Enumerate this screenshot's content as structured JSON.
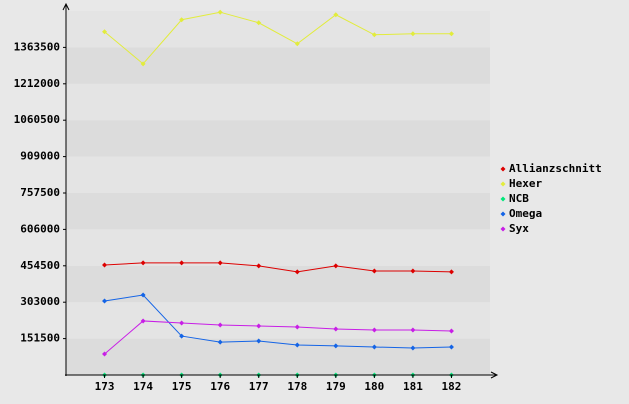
{
  "chart_data": {
    "type": "line",
    "categories": [
      "173",
      "174",
      "175",
      "176",
      "177",
      "178",
      "179",
      "180",
      "181",
      "182"
    ],
    "series": [
      {
        "name": "Allianzschnitt",
        "color": "#dd0000",
        "values": [
          458000,
          466500,
          466500,
          466500,
          454000,
          429000,
          454000,
          433000,
          433000,
          429000
        ]
      },
      {
        "name": "Hexer",
        "color": "#e2ec3c",
        "values": [
          1428700,
          1295000,
          1478600,
          1510000,
          1466000,
          1378600,
          1499400,
          1416100,
          1420300,
          1420300
        ]
      },
      {
        "name": "NCB",
        "color": "#00e87a",
        "values": [
          0,
          0,
          0,
          0,
          0,
          0,
          0,
          0,
          0,
          0
        ]
      },
      {
        "name": "Omega",
        "color": "#1464e6",
        "values": [
          308000,
          333000,
          162000,
          137000,
          141500,
          125000,
          121000,
          116500,
          112500,
          116500
        ]
      },
      {
        "name": "Syx",
        "color": "#c81ee6",
        "values": [
          87500,
          225000,
          216500,
          208000,
          204000,
          200000,
          191500,
          187500,
          187500,
          183000
        ]
      }
    ],
    "ylim": [
      0,
      1515000
    ],
    "yticks": [
      151500,
      303000,
      454500,
      606000,
      757500,
      909000,
      1060500,
      1212000,
      1363500
    ],
    "grid": true
  }
}
